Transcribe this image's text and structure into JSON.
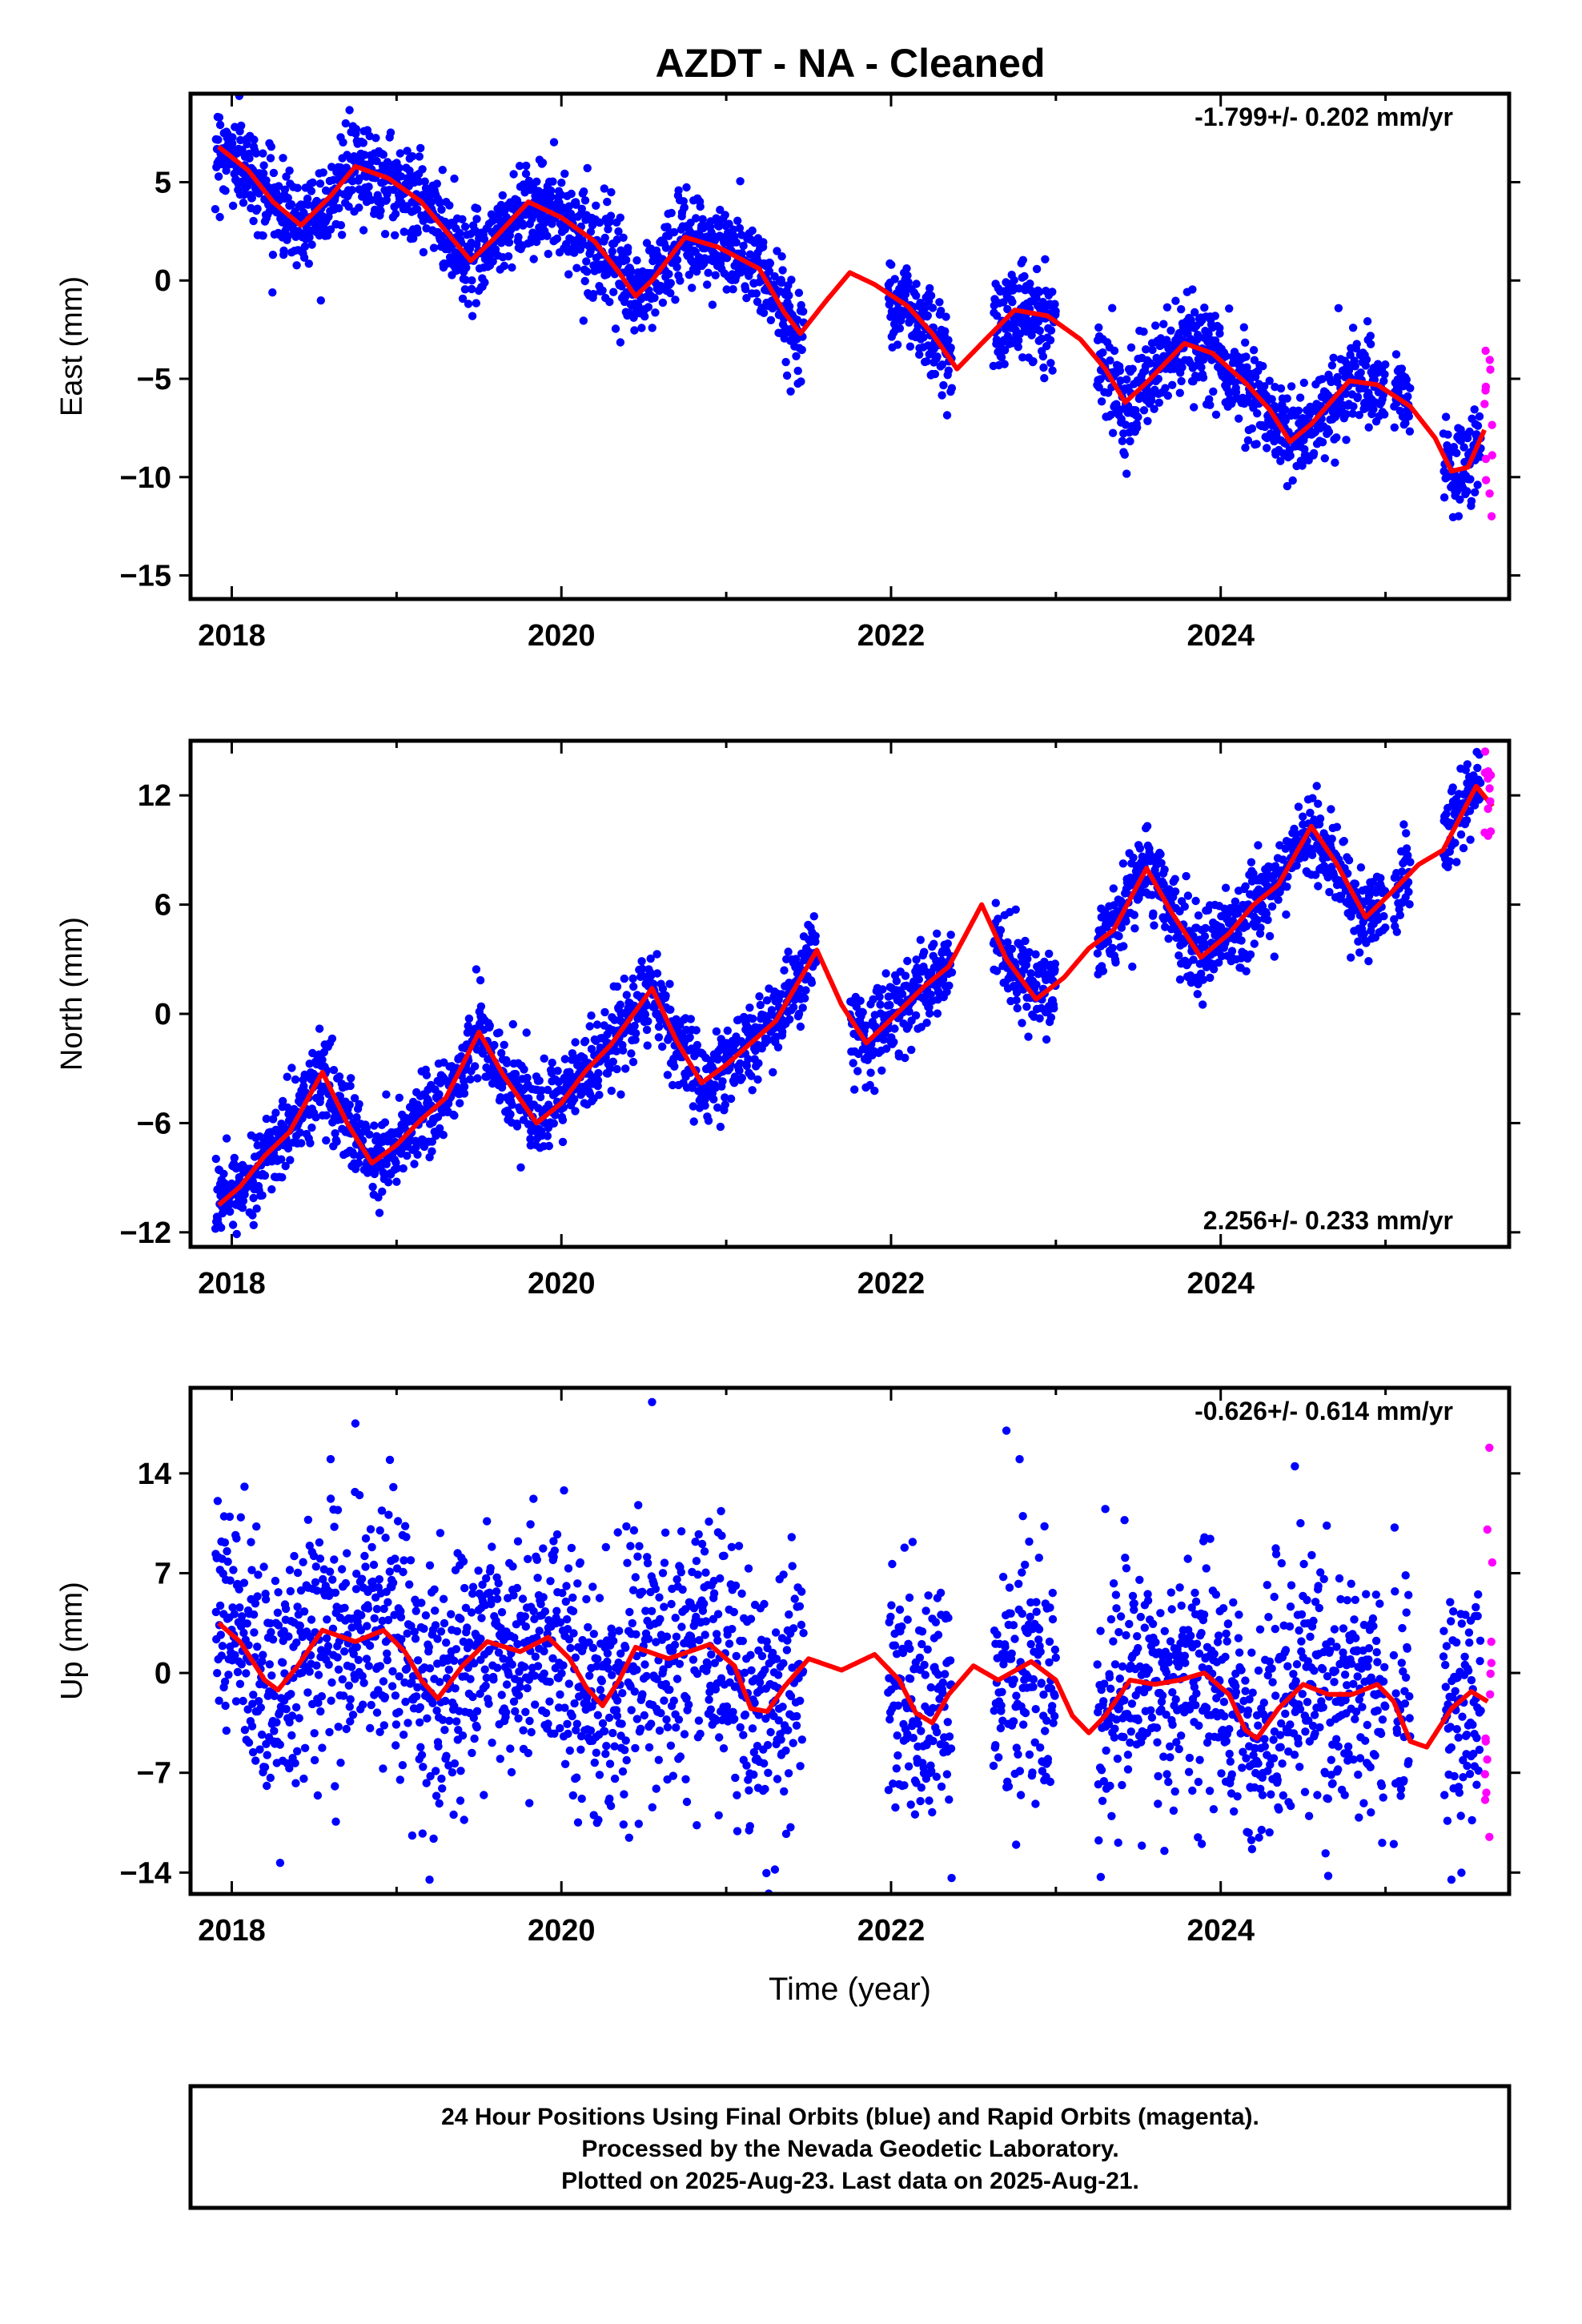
{
  "title": "AZDT  - NA - Cleaned",
  "colors": {
    "final": "#0000ff",
    "rapid": "#ff00ff",
    "model": "#ff0000",
    "frame": "#000000"
  },
  "chart_data": [
    {
      "type": "scatter",
      "panel": "east",
      "ylabel": "East (mm)",
      "xlabel": "",
      "xlim": [
        2017.75,
        2025.75
      ],
      "ylim": [
        -16.2,
        9.5
      ],
      "xticks": [
        {
          "value": 2018,
          "label": "2018"
        },
        {
          "value": 2020,
          "label": "2020"
        },
        {
          "value": 2022,
          "label": "2022"
        },
        {
          "value": 2024,
          "label": "2024"
        }
      ],
      "yticks": [
        {
          "value": 5,
          "label": "5"
        },
        {
          "value": 0,
          "label": "0"
        },
        {
          "value": -5,
          "label": "−5"
        },
        {
          "value": -10,
          "label": "−10"
        },
        {
          "value": -15,
          "label": "−15"
        }
      ],
      "rate": "-1.799+/- 0.202 mm/yr",
      "rate_position": "top-right",
      "model_curve": [
        [
          2017.92,
          6.8
        ],
        [
          2018.1,
          5.6
        ],
        [
          2018.25,
          4.0
        ],
        [
          2018.42,
          2.8
        ],
        [
          2018.6,
          4.3
        ],
        [
          2018.75,
          5.8
        ],
        [
          2018.95,
          5.2
        ],
        [
          2019.15,
          4.0
        ],
        [
          2019.3,
          2.5
        ],
        [
          2019.45,
          1.0
        ],
        [
          2019.6,
          2.2
        ],
        [
          2019.8,
          4.0
        ],
        [
          2020.0,
          3.2
        ],
        [
          2020.2,
          2.0
        ],
        [
          2020.35,
          0.4
        ],
        [
          2020.45,
          -0.8
        ],
        [
          2020.55,
          0.0
        ],
        [
          2020.75,
          2.2
        ],
        [
          2020.95,
          1.7
        ],
        [
          2021.2,
          0.6
        ],
        [
          2021.35,
          -1.6
        ],
        [
          2021.45,
          -2.7
        ],
        [
          2021.6,
          -1.1
        ],
        [
          2021.75,
          0.4
        ],
        [
          2021.9,
          -0.2
        ],
        [
          2022.1,
          -1.3
        ],
        [
          2022.25,
          -2.7
        ],
        [
          2022.4,
          -4.5
        ],
        [
          2022.55,
          -3.2
        ],
        [
          2022.75,
          -1.5
        ],
        [
          2022.95,
          -1.8
        ],
        [
          2023.15,
          -3.0
        ],
        [
          2023.3,
          -4.5
        ],
        [
          2023.42,
          -6.2
        ],
        [
          2023.55,
          -5.2
        ],
        [
          2023.78,
          -3.2
        ],
        [
          2023.95,
          -3.7
        ],
        [
          2024.15,
          -5.2
        ],
        [
          2024.3,
          -6.6
        ],
        [
          2024.42,
          -8.2
        ],
        [
          2024.55,
          -7.3
        ],
        [
          2024.78,
          -5.1
        ],
        [
          2024.95,
          -5.3
        ],
        [
          2025.15,
          -6.4
        ],
        [
          2025.3,
          -8.0
        ],
        [
          2025.4,
          -9.7
        ],
        [
          2025.5,
          -9.5
        ],
        [
          2025.6,
          -7.6
        ]
      ],
      "final_segments": [
        {
          "x0": 2017.9,
          "x1": 2021.47,
          "scatter": 1.15
        },
        {
          "x0": 2021.98,
          "x1": 2022.37,
          "scatter": 1.15
        },
        {
          "x0": 2022.62,
          "x1": 2023.0,
          "scatter": 1.15
        },
        {
          "x0": 2023.25,
          "x1": 2025.0,
          "scatter": 1.15
        },
        {
          "x0": 2025.05,
          "x1": 2025.15,
          "scatter": 1.15
        },
        {
          "x0": 2025.35,
          "x1": 2025.58,
          "scatter": 1.15
        }
      ],
      "rapid_segments": [
        {
          "x0": 2025.6,
          "x1": 2025.65,
          "scatter": 2.5
        }
      ],
      "point_count": 2400
    },
    {
      "type": "scatter",
      "panel": "north",
      "ylabel": "North (mm)",
      "xlabel": "",
      "xlim": [
        2017.75,
        2025.75
      ],
      "ylim": [
        -12.8,
        15.0
      ],
      "xticks": [
        {
          "value": 2018,
          "label": "2018"
        },
        {
          "value": 2020,
          "label": "2020"
        },
        {
          "value": 2022,
          "label": "2022"
        },
        {
          "value": 2024,
          "label": "2024"
        }
      ],
      "yticks": [
        {
          "value": 12,
          "label": "12"
        },
        {
          "value": 6,
          "label": "6"
        },
        {
          "value": 0,
          "label": "0"
        },
        {
          "value": -6,
          "label": "−6"
        },
        {
          "value": -12,
          "label": "−12"
        }
      ],
      "rate": "2.256+/- 0.233 mm/yr",
      "rate_position": "bottom-right",
      "model_curve": [
        [
          2017.92,
          -10.5
        ],
        [
          2018.05,
          -9.5
        ],
        [
          2018.2,
          -7.8
        ],
        [
          2018.35,
          -6.5
        ],
        [
          2018.55,
          -3.2
        ],
        [
          2018.7,
          -6.0
        ],
        [
          2018.85,
          -8.2
        ],
        [
          2019.0,
          -7.2
        ],
        [
          2019.15,
          -5.8
        ],
        [
          2019.3,
          -4.6
        ],
        [
          2019.5,
          -1.0
        ],
        [
          2019.65,
          -3.4
        ],
        [
          2019.85,
          -6.0
        ],
        [
          2020.0,
          -4.9
        ],
        [
          2020.15,
          -3.1
        ],
        [
          2020.3,
          -1.7
        ],
        [
          2020.55,
          1.4
        ],
        [
          2020.7,
          -1.5
        ],
        [
          2020.85,
          -3.8
        ],
        [
          2021.0,
          -2.8
        ],
        [
          2021.15,
          -1.6
        ],
        [
          2021.3,
          -0.4
        ],
        [
          2021.55,
          3.5
        ],
        [
          2021.7,
          0.5
        ],
        [
          2021.85,
          -1.6
        ],
        [
          2022.0,
          -0.3
        ],
        [
          2022.2,
          1.5
        ],
        [
          2022.35,
          2.6
        ],
        [
          2022.55,
          6.0
        ],
        [
          2022.7,
          3.0
        ],
        [
          2022.88,
          0.8
        ],
        [
          2023.05,
          2.0
        ],
        [
          2023.2,
          3.6
        ],
        [
          2023.35,
          4.6
        ],
        [
          2023.55,
          8.0
        ],
        [
          2023.7,
          5.6
        ],
        [
          2023.88,
          3.1
        ],
        [
          2024.05,
          4.4
        ],
        [
          2024.2,
          6.0
        ],
        [
          2024.35,
          7.1
        ],
        [
          2024.55,
          10.3
        ],
        [
          2024.7,
          8.3
        ],
        [
          2024.88,
          5.3
        ],
        [
          2025.05,
          6.8
        ],
        [
          2025.2,
          8.2
        ],
        [
          2025.35,
          9.0
        ],
        [
          2025.55,
          12.5
        ],
        [
          2025.65,
          11.4
        ]
      ],
      "final_segments": [
        {
          "x0": 2017.9,
          "x1": 2021.55,
          "scatter": 1.15
        },
        {
          "x0": 2021.75,
          "x1": 2022.37,
          "scatter": 1.15
        },
        {
          "x0": 2022.62,
          "x1": 2023.0,
          "scatter": 1.15
        },
        {
          "x0": 2023.25,
          "x1": 2025.0,
          "scatter": 1.15
        },
        {
          "x0": 2025.05,
          "x1": 2025.15,
          "scatter": 1.15
        },
        {
          "x0": 2025.35,
          "x1": 2025.58,
          "scatter": 1.15
        }
      ],
      "rapid_segments": [
        {
          "x0": 2025.6,
          "x1": 2025.65,
          "scatter": 1.8
        }
      ],
      "point_count": 2400
    },
    {
      "type": "scatter",
      "panel": "up",
      "ylabel": "Up (mm)",
      "xlabel": "Time (year)",
      "xlim": [
        2017.75,
        2025.75
      ],
      "ylim": [
        -15.5,
        20.0
      ],
      "xticks": [
        {
          "value": 2018,
          "label": "2018"
        },
        {
          "value": 2020,
          "label": "2020"
        },
        {
          "value": 2022,
          "label": "2022"
        },
        {
          "value": 2024,
          "label": "2024"
        }
      ],
      "yticks": [
        {
          "value": 14,
          "label": "14"
        },
        {
          "value": 7,
          "label": "7"
        },
        {
          "value": 0,
          "label": "0"
        },
        {
          "value": -7,
          "label": "−7"
        },
        {
          "value": -14,
          "label": "−14"
        }
      ],
      "rate": "-0.626+/- 0.614 mm/yr",
      "rate_position": "top-right",
      "model_curve": [
        [
          2017.92,
          3.5
        ],
        [
          2018.05,
          2.2
        ],
        [
          2018.2,
          -0.5
        ],
        [
          2018.28,
          -1.2
        ],
        [
          2018.4,
          0.5
        ],
        [
          2018.55,
          3.0
        ],
        [
          2018.75,
          2.2
        ],
        [
          2018.92,
          3.0
        ],
        [
          2019.05,
          1.5
        ],
        [
          2019.15,
          -0.5
        ],
        [
          2019.25,
          -1.8
        ],
        [
          2019.4,
          0.5
        ],
        [
          2019.55,
          2.2
        ],
        [
          2019.75,
          1.5
        ],
        [
          2019.92,
          2.5
        ],
        [
          2020.05,
          1.0
        ],
        [
          2020.15,
          -1.0
        ],
        [
          2020.25,
          -2.3
        ],
        [
          2020.35,
          -0.5
        ],
        [
          2020.45,
          1.8
        ],
        [
          2020.65,
          1.0
        ],
        [
          2020.9,
          2.0
        ],
        [
          2021.05,
          0.5
        ],
        [
          2021.15,
          -2.5
        ],
        [
          2021.25,
          -2.7
        ],
        [
          2021.35,
          -1.0
        ],
        [
          2021.5,
          1.0
        ],
        [
          2021.7,
          0.2
        ],
        [
          2021.9,
          1.3
        ],
        [
          2022.05,
          -0.5
        ],
        [
          2022.15,
          -2.8
        ],
        [
          2022.25,
          -3.5
        ],
        [
          2022.35,
          -1.5
        ],
        [
          2022.5,
          0.5
        ],
        [
          2022.65,
          -0.5
        ],
        [
          2022.85,
          0.8
        ],
        [
          2023.0,
          -0.5
        ],
        [
          2023.1,
          -3.0
        ],
        [
          2023.2,
          -4.2
        ],
        [
          2023.3,
          -3.0
        ],
        [
          2023.45,
          -0.5
        ],
        [
          2023.6,
          -0.8
        ],
        [
          2023.75,
          -0.5
        ],
        [
          2023.9,
          0.0
        ],
        [
          2024.05,
          -1.5
        ],
        [
          2024.15,
          -4.0
        ],
        [
          2024.22,
          -4.6
        ],
        [
          2024.35,
          -2.5
        ],
        [
          2024.5,
          -0.8
        ],
        [
          2024.65,
          -1.5
        ],
        [
          2024.8,
          -1.5
        ],
        [
          2024.95,
          -0.8
        ],
        [
          2025.05,
          -2.0
        ],
        [
          2025.15,
          -4.8
        ],
        [
          2025.25,
          -5.2
        ],
        [
          2025.4,
          -2.5
        ],
        [
          2025.52,
          -1.3
        ],
        [
          2025.62,
          -2.0
        ]
      ],
      "final_segments": [
        {
          "x0": 2017.9,
          "x1": 2021.47,
          "scatter": 4.2
        },
        {
          "x0": 2021.98,
          "x1": 2022.37,
          "scatter": 4.2
        },
        {
          "x0": 2022.62,
          "x1": 2023.0,
          "scatter": 4.2
        },
        {
          "x0": 2023.25,
          "x1": 2025.0,
          "scatter": 4.2
        },
        {
          "x0": 2025.05,
          "x1": 2025.15,
          "scatter": 4.2
        },
        {
          "x0": 2025.35,
          "x1": 2025.58,
          "scatter": 4.2
        }
      ],
      "rapid_segments": [
        {
          "x0": 2025.6,
          "x1": 2025.65,
          "scatter": 7.0
        }
      ],
      "outliers": [
        [
          2018.6,
          15.0
        ],
        [
          2018.75,
          17.5
        ],
        [
          2018.9,
          10.0
        ],
        [
          2020.55,
          19.0
        ],
        [
          2022.7,
          17.0
        ],
        [
          2022.78,
          15.0
        ],
        [
          2022.8,
          11.0
        ],
        [
          2019.2,
          -14.5
        ],
        [
          2023.3,
          11.5
        ],
        [
          2024.45,
          14.5
        ],
        [
          2025.05,
          -12.0
        ],
        [
          2025.4,
          -14.5
        ]
      ],
      "rapid_extremes": [
        [
          2025.63,
          15.8
        ],
        [
          2025.63,
          -11.5
        ]
      ],
      "point_count": 2400
    }
  ],
  "footer": {
    "line1": "24 Hour Positions Using Final Orbits (blue) and Rapid Orbits (magenta).",
    "line2": "Processed by the Nevada Geodetic Laboratory.",
    "line3": "Plotted on 2025-Aug-23. Last data on 2025-Aug-21."
  }
}
